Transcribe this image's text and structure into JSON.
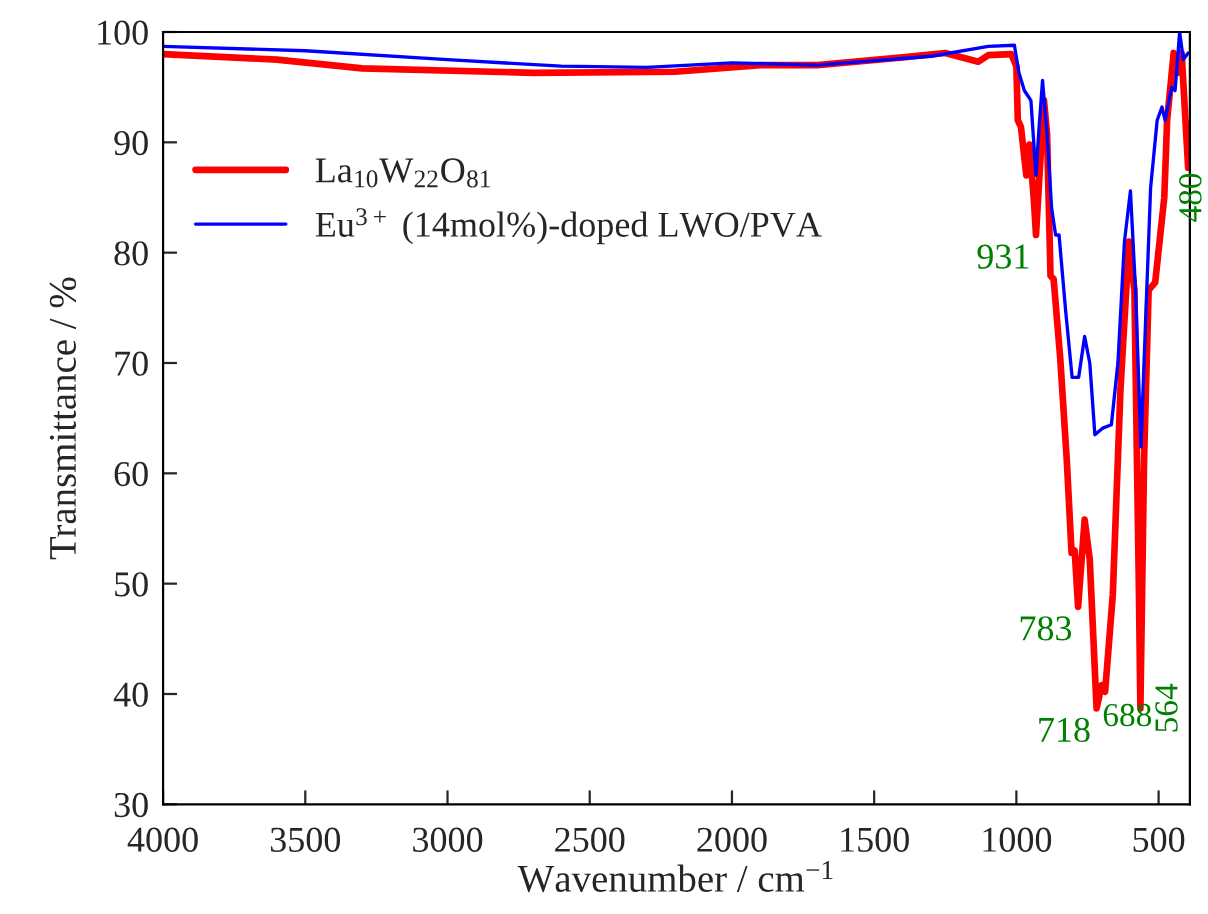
{
  "chart_data": {
    "type": "line",
    "xlabel": "Wavenumber / cm$^{−1}$",
    "ylabel": "Transmittance / %",
    "xlim": [
      4000,
      390
    ],
    "ylim": [
      30,
      100
    ],
    "xticks": [
      4000,
      3500,
      3000,
      2500,
      2000,
      1500,
      1000,
      500
    ],
    "yticks": [
      30,
      40,
      50,
      60,
      70,
      80,
      90,
      100
    ],
    "grid": false,
    "legend": "top left",
    "marker": "none",
    "line_style": "solid",
    "series": [
      {
        "name": "La$_{10}$W$_{22}$O$_{81}$",
        "color": "#ff0000",
        "x": [
          4000,
          3600,
          3300,
          2700,
          2200,
          1900,
          1700,
          1400,
          1250,
          1134,
          1099,
          1018,
          1000,
          995,
          984,
          965,
          954,
          938,
          931,
          920,
          903,
          892,
          880,
          869,
          846,
          823,
          806,
          795,
          783,
          760,
          742,
          718,
          700,
          688,
          661,
          634,
          604,
          585,
          569,
          564,
          551,
          535,
          512,
          480,
          470,
          447,
          431,
          419,
          396
        ],
        "values": [
          98,
          97.5,
          96.7,
          96.3,
          96.4,
          97,
          97,
          97.7,
          98.1,
          97.3,
          97.9,
          98,
          96.9,
          92,
          91.4,
          87,
          89.8,
          84.6,
          81.6,
          86.5,
          93.8,
          90.7,
          77.9,
          77.6,
          70.5,
          61.3,
          52.8,
          53,
          47.9,
          55.8,
          52.2,
          38.7,
          40.8,
          40.2,
          49,
          67.6,
          81,
          76.6,
          49,
          38.7,
          61.3,
          76.6,
          77.3,
          85,
          92,
          98.1,
          96.3,
          98.1,
          87.7
        ]
      },
      {
        "name": "Eu$^{3+}$ (14mol%)-doped LWO/PVA",
        "color": "#0000ff",
        "x": [
          4000,
          3500,
          3000,
          2600,
          2300,
          2000,
          1700,
          1300,
          1099,
          1007,
          991,
          972,
          949,
          931,
          922,
          908,
          892,
          876,
          862,
          850,
          827,
          804,
          781,
          760,
          742,
          724,
          696,
          666,
          643,
          620,
          599,
          581,
          562,
          546,
          528,
          505,
          488,
          477,
          454,
          442,
          426,
          413,
          396
        ],
        "values": [
          98.7,
          98.3,
          97.5,
          96.9,
          96.8,
          97.2,
          97,
          97.8,
          98.7,
          98.8,
          96.3,
          94.7,
          93.8,
          87,
          90.7,
          95.6,
          90.7,
          84,
          81.6,
          81.6,
          74.8,
          68.7,
          68.7,
          72.4,
          70,
          63.5,
          64.1,
          64.4,
          70,
          81,
          85.6,
          76.6,
          62.4,
          73.6,
          85.9,
          92,
          93.2,
          92,
          95,
          94.7,
          100,
          97.5,
          98.1
        ]
      }
    ],
    "annotations": [
      {
        "text": "931",
        "x": 931,
        "y": 81.6
      },
      {
        "text": "783",
        "x": 783,
        "y": 47.9
      },
      {
        "text": "718",
        "x": 718,
        "y": 38.7
      },
      {
        "text": "688",
        "x": 688,
        "y": 40.2
      },
      {
        "text": "564",
        "x": 564,
        "y": 38.7
      },
      {
        "text": "480",
        "x": 480,
        "y": 85
      }
    ]
  }
}
